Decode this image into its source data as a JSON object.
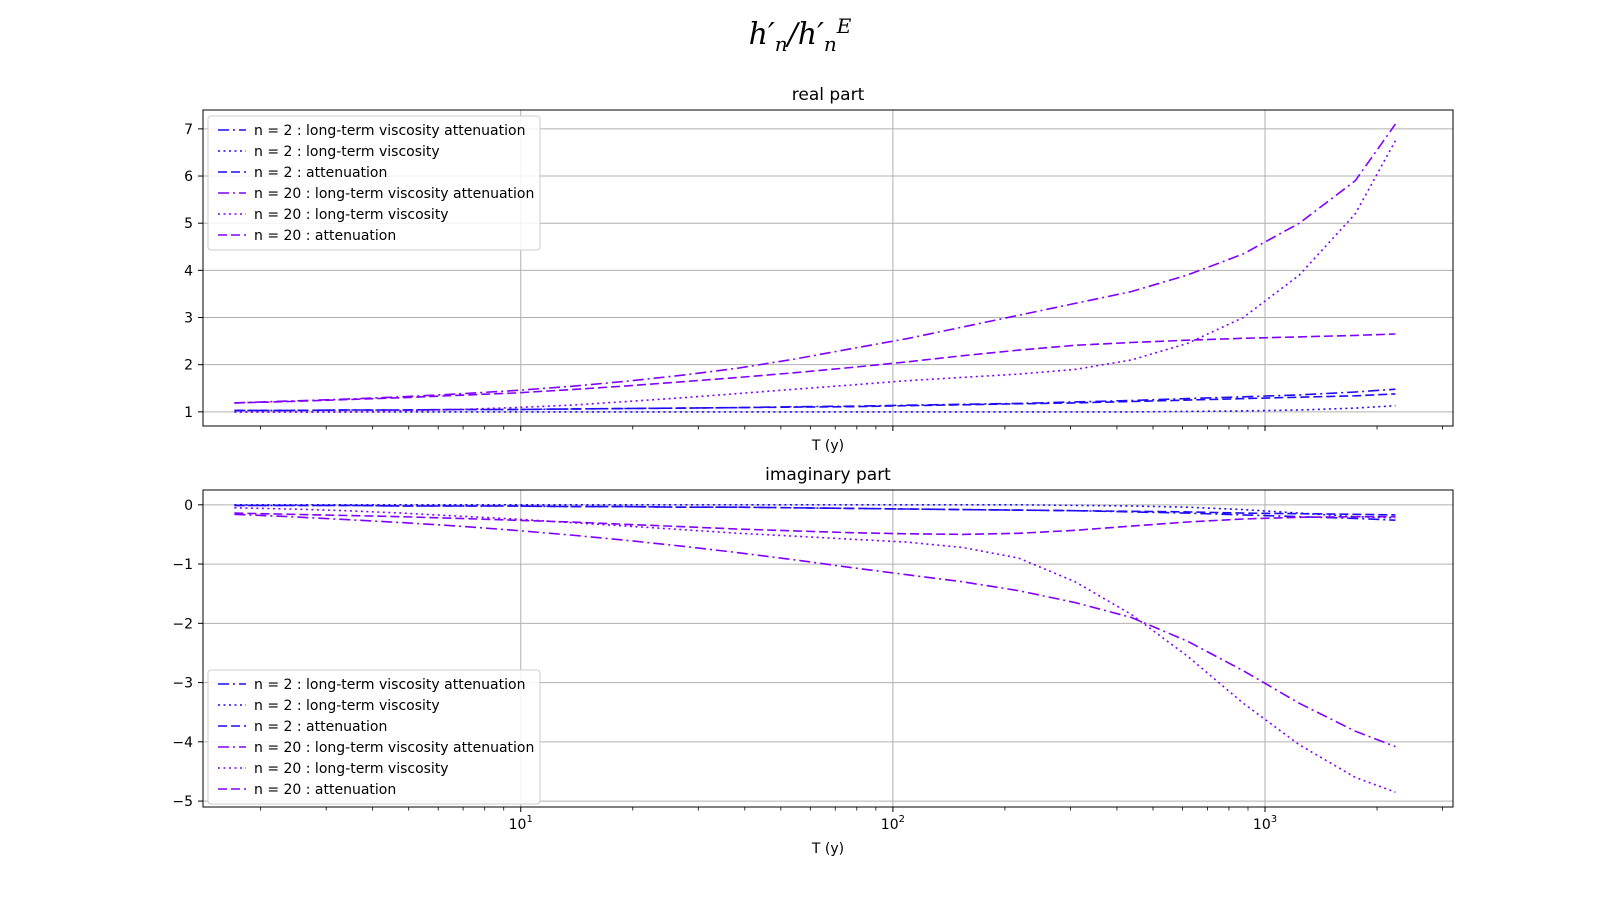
{
  "figure": {
    "suptitle": {
      "h": "h",
      "n": "n",
      "E": "E"
    }
  },
  "chart_data": [
    {
      "type": "line",
      "title": "real part",
      "xlabel": "T (y)",
      "ylabel": "",
      "xscale": "log",
      "xlim": [
        1.4,
        3200
      ],
      "ylim": [
        0.7,
        7.4
      ],
      "yticks": [
        1,
        2,
        3,
        4,
        5,
        6,
        7
      ],
      "xticks": [
        {
          "base": "10",
          "exp": "1",
          "value": 10
        },
        {
          "base": "10",
          "exp": "2",
          "value": 100
        },
        {
          "base": "10",
          "exp": "3",
          "value": 1000
        }
      ],
      "grid": true,
      "legend": "top-left",
      "x": [
        1.7,
        2.4,
        3.4,
        4.8,
        6.8,
        9.6,
        13.6,
        19.3,
        27.3,
        38.6,
        54.6,
        77.2,
        109,
        154,
        218,
        309,
        437,
        618,
        874,
        1236,
        1748,
        2240
      ],
      "series": [
        {
          "name": "n = 2 : long-term viscosity attenuation",
          "color": "#1f0cf5",
          "dash": "dashdot",
          "values": [
            1.03,
            1.03,
            1.04,
            1.04,
            1.05,
            1.05,
            1.06,
            1.07,
            1.08,
            1.09,
            1.11,
            1.12,
            1.14,
            1.16,
            1.18,
            1.21,
            1.24,
            1.28,
            1.32,
            1.36,
            1.42,
            1.48
          ]
        },
        {
          "name": "n = 2 : long-term viscosity",
          "color": "#1f0cf5",
          "dash": "dotted",
          "values": [
            1.0,
            1.0,
            1.0,
            1.0,
            1.0,
            1.0,
            1.0,
            1.0,
            1.0,
            1.0,
            1.0,
            1.0,
            1.0,
            1.0,
            1.0,
            1.0,
            1.0,
            1.01,
            1.02,
            1.04,
            1.08,
            1.13
          ]
        },
        {
          "name": "n = 2 :  attenuation",
          "color": "#1f0cf5",
          "dash": "dashed",
          "values": [
            1.03,
            1.03,
            1.04,
            1.04,
            1.05,
            1.05,
            1.06,
            1.07,
            1.08,
            1.09,
            1.1,
            1.11,
            1.13,
            1.15,
            1.17,
            1.19,
            1.22,
            1.25,
            1.28,
            1.31,
            1.34,
            1.38
          ]
        },
        {
          "name": "n = 20 : long-term viscosity attenuation",
          "color": "#8000ff",
          "dash": "dashdot",
          "values": [
            1.19,
            1.23,
            1.27,
            1.32,
            1.38,
            1.45,
            1.54,
            1.65,
            1.78,
            1.93,
            2.12,
            2.34,
            2.55,
            2.8,
            3.05,
            3.3,
            3.55,
            3.9,
            4.35,
            5.0,
            5.9,
            7.1
          ]
        },
        {
          "name": "n = 20 : long-term viscosity",
          "color": "#8000ff",
          "dash": "dotted",
          "values": [
            1.0,
            1.0,
            1.0,
            1.02,
            1.05,
            1.09,
            1.14,
            1.22,
            1.3,
            1.39,
            1.48,
            1.57,
            1.66,
            1.73,
            1.8,
            1.9,
            2.1,
            2.45,
            3.0,
            3.9,
            5.2,
            6.75
          ]
        },
        {
          "name": "n = 20 :  attenuation",
          "color": "#8000ff",
          "dash": "dashed",
          "values": [
            1.19,
            1.22,
            1.26,
            1.3,
            1.35,
            1.4,
            1.47,
            1.55,
            1.64,
            1.73,
            1.83,
            1.94,
            2.06,
            2.19,
            2.31,
            2.41,
            2.47,
            2.52,
            2.56,
            2.59,
            2.62,
            2.65
          ]
        }
      ]
    },
    {
      "type": "line",
      "title": "imaginary part",
      "xlabel": "T (y)",
      "ylabel": "",
      "xscale": "log",
      "xlim": [
        1.4,
        3200
      ],
      "ylim": [
        -5.1,
        0.25
      ],
      "yticks": [
        0,
        -1,
        -2,
        -3,
        -4,
        -5
      ],
      "xticks": [
        {
          "base": "10",
          "exp": "1",
          "value": 10
        },
        {
          "base": "10",
          "exp": "2",
          "value": 100
        },
        {
          "base": "10",
          "exp": "3",
          "value": 1000
        }
      ],
      "grid": true,
      "legend": "bottom-left",
      "x": [
        1.7,
        2.4,
        3.4,
        4.8,
        6.8,
        9.6,
        13.6,
        19.3,
        27.3,
        38.6,
        54.6,
        77.2,
        109,
        154,
        218,
        309,
        437,
        618,
        874,
        1236,
        1748,
        2240
      ],
      "series": [
        {
          "name": "n = 2 : long-term viscosity attenuation",
          "color": "#1f0cf5",
          "dash": "dashdot",
          "values": [
            -0.01,
            -0.01,
            -0.01,
            -0.02,
            -0.02,
            -0.02,
            -0.03,
            -0.03,
            -0.04,
            -0.04,
            -0.05,
            -0.06,
            -0.07,
            -0.08,
            -0.09,
            -0.1,
            -0.12,
            -0.14,
            -0.17,
            -0.2,
            -0.23,
            -0.26
          ]
        },
        {
          "name": "n = 2 : long-term viscosity",
          "color": "#1f0cf5",
          "dash": "dotted",
          "values": [
            0.0,
            0.0,
            0.0,
            0.0,
            0.0,
            0.0,
            0.0,
            0.0,
            0.0,
            0.0,
            0.0,
            0.0,
            0.0,
            0.0,
            0.0,
            -0.01,
            -0.02,
            -0.04,
            -0.08,
            -0.14,
            -0.2,
            -0.22
          ]
        },
        {
          "name": "n = 2 :  attenuation",
          "color": "#1f0cf5",
          "dash": "dashed",
          "values": [
            -0.01,
            -0.01,
            -0.01,
            -0.02,
            -0.02,
            -0.02,
            -0.03,
            -0.03,
            -0.04,
            -0.04,
            -0.05,
            -0.06,
            -0.07,
            -0.08,
            -0.09,
            -0.1,
            -0.11,
            -0.12,
            -0.14,
            -0.15,
            -0.16,
            -0.17
          ]
        },
        {
          "name": "n = 20 : long-term viscosity attenuation",
          "color": "#8000ff",
          "dash": "dashdot",
          "values": [
            -0.16,
            -0.2,
            -0.25,
            -0.3,
            -0.36,
            -0.43,
            -0.51,
            -0.6,
            -0.7,
            -0.81,
            -0.93,
            -1.06,
            -1.18,
            -1.3,
            -1.45,
            -1.65,
            -1.9,
            -2.3,
            -2.8,
            -3.35,
            -3.82,
            -4.08
          ]
        },
        {
          "name": "n = 20 : long-term viscosity",
          "color": "#8000ff",
          "dash": "dotted",
          "values": [
            -0.05,
            -0.07,
            -0.1,
            -0.14,
            -0.19,
            -0.24,
            -0.3,
            -0.36,
            -0.42,
            -0.48,
            -0.53,
            -0.58,
            -0.63,
            -0.72,
            -0.9,
            -1.3,
            -1.85,
            -2.55,
            -3.35,
            -4.05,
            -4.6,
            -4.85
          ]
        },
        {
          "name": "n = 20 :  attenuation",
          "color": "#8000ff",
          "dash": "dashed",
          "values": [
            -0.14,
            -0.16,
            -0.18,
            -0.2,
            -0.23,
            -0.26,
            -0.29,
            -0.33,
            -0.37,
            -0.41,
            -0.44,
            -0.47,
            -0.49,
            -0.5,
            -0.48,
            -0.43,
            -0.36,
            -0.29,
            -0.24,
            -0.21,
            -0.2,
            -0.2
          ]
        }
      ]
    }
  ]
}
